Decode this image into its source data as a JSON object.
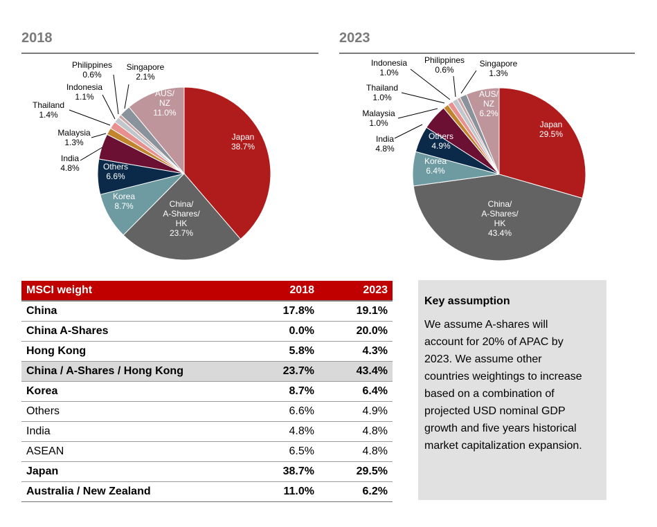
{
  "chart_data": [
    {
      "type": "pie",
      "title": "2018",
      "slices": [
        {
          "label": [
            "Japan",
            "38.7%"
          ],
          "value": 38.7,
          "color": "#b01c1c"
        },
        {
          "label": [
            "China/",
            "A-Shares/",
            "HK",
            "23.7%"
          ],
          "value": 23.7,
          "color": "#636363"
        },
        {
          "label": [
            "Korea",
            "8.7%"
          ],
          "value": 8.7,
          "color": "#6e9ba1"
        },
        {
          "label": [
            "Others",
            "6.6%"
          ],
          "value": 6.6,
          "color": "#0b2a4a"
        },
        {
          "label": [
            "India",
            "4.8%"
          ],
          "value": 4.8,
          "color": "#6b0f33"
        },
        {
          "label": [
            "Malaysia",
            "1.3%"
          ],
          "value": 1.3,
          "color": "#c2852d"
        },
        {
          "label": [
            "Thailand",
            "1.4%"
          ],
          "value": 1.4,
          "color": "#e8908f"
        },
        {
          "label": [
            "Indonesia",
            "1.1%"
          ],
          "value": 1.1,
          "color": "#c0c6cc"
        },
        {
          "label": [
            "Philippines",
            "0.6%"
          ],
          "value": 0.6,
          "color": "#c9a5a5"
        },
        {
          "label": [
            "Singapore",
            "2.1%"
          ],
          "value": 2.1,
          "color": "#8a939c"
        },
        {
          "label": [
            "AUS/",
            "NZ",
            "11.0%"
          ],
          "value": 11.0,
          "color": "#be959b"
        }
      ]
    },
    {
      "type": "pie",
      "title": "2023",
      "slices": [
        {
          "label": [
            "Japan",
            "29.5%"
          ],
          "value": 29.5,
          "color": "#b01c1c"
        },
        {
          "label": [
            "China/",
            "A-Shares/",
            "HK",
            "43.4%"
          ],
          "value": 43.4,
          "color": "#636363"
        },
        {
          "label": [
            "Korea",
            "6.4%"
          ],
          "value": 6.4,
          "color": "#6e9ba1"
        },
        {
          "label": [
            "Others",
            "4.9%"
          ],
          "value": 4.9,
          "color": "#0b2a4a"
        },
        {
          "label": [
            "India",
            "4.8%"
          ],
          "value": 4.8,
          "color": "#6b0f33"
        },
        {
          "label": [
            "Malaysia",
            "1.0%"
          ],
          "value": 1.0,
          "color": "#c2852d"
        },
        {
          "label": [
            "Thailand",
            "1.0%"
          ],
          "value": 1.0,
          "color": "#e8908f"
        },
        {
          "label": [
            "Indonesia",
            "1.0%"
          ],
          "value": 1.0,
          "color": "#c0c6cc"
        },
        {
          "label": [
            "Philippines",
            "0.6%"
          ],
          "value": 0.6,
          "color": "#c9a5a5"
        },
        {
          "label": [
            "Singapore",
            "1.3%"
          ],
          "value": 1.3,
          "color": "#8a939c"
        },
        {
          "label": [
            "AUS/",
            "NZ",
            "6.2%"
          ],
          "value": 6.2,
          "color": "#be959b"
        }
      ]
    }
  ],
  "table": {
    "headers": [
      "MSCI weight",
      "2018",
      "2023"
    ],
    "rows": [
      {
        "name": "China",
        "v2018": "17.8%",
        "v2023": "19.1%",
        "style": "bold"
      },
      {
        "name": "China A-Shares",
        "v2018": "0.0%",
        "v2023": "20.0%",
        "style": "bold"
      },
      {
        "name": "Hong Kong",
        "v2018": "5.8%",
        "v2023": "4.3%",
        "style": "bold"
      },
      {
        "name": "China / A-Shares / Hong Kong",
        "v2018": "23.7%",
        "v2023": "43.4%",
        "style": "shade"
      },
      {
        "name": "Korea",
        "v2018": "8.7%",
        "v2023": "6.4%",
        "style": "bold"
      },
      {
        "name": "Others",
        "v2018": "6.6%",
        "v2023": "4.9%",
        "style": "normal"
      },
      {
        "name": "India",
        "v2018": "4.8%",
        "v2023": "4.8%",
        "style": "normal"
      },
      {
        "name": "ASEAN",
        "v2018": "6.5%",
        "v2023": "4.8%",
        "style": "normal"
      },
      {
        "name": "Japan",
        "v2018": "38.7%",
        "v2023": "29.5%",
        "style": "bold"
      },
      {
        "name": "Australia / New Zealand",
        "v2018": "11.0%",
        "v2023": "6.2%",
        "style": "bold"
      }
    ]
  },
  "assumption": {
    "heading": "Key assumption",
    "lines": [
      "We assume A-shares will",
      "account for 20% of APAC by",
      "2023. We assume other",
      "countries weightings to increase",
      "based on a combination of",
      "projected USD nominal GDP",
      "growth and five years historical",
      "market capitalization expansion."
    ]
  }
}
